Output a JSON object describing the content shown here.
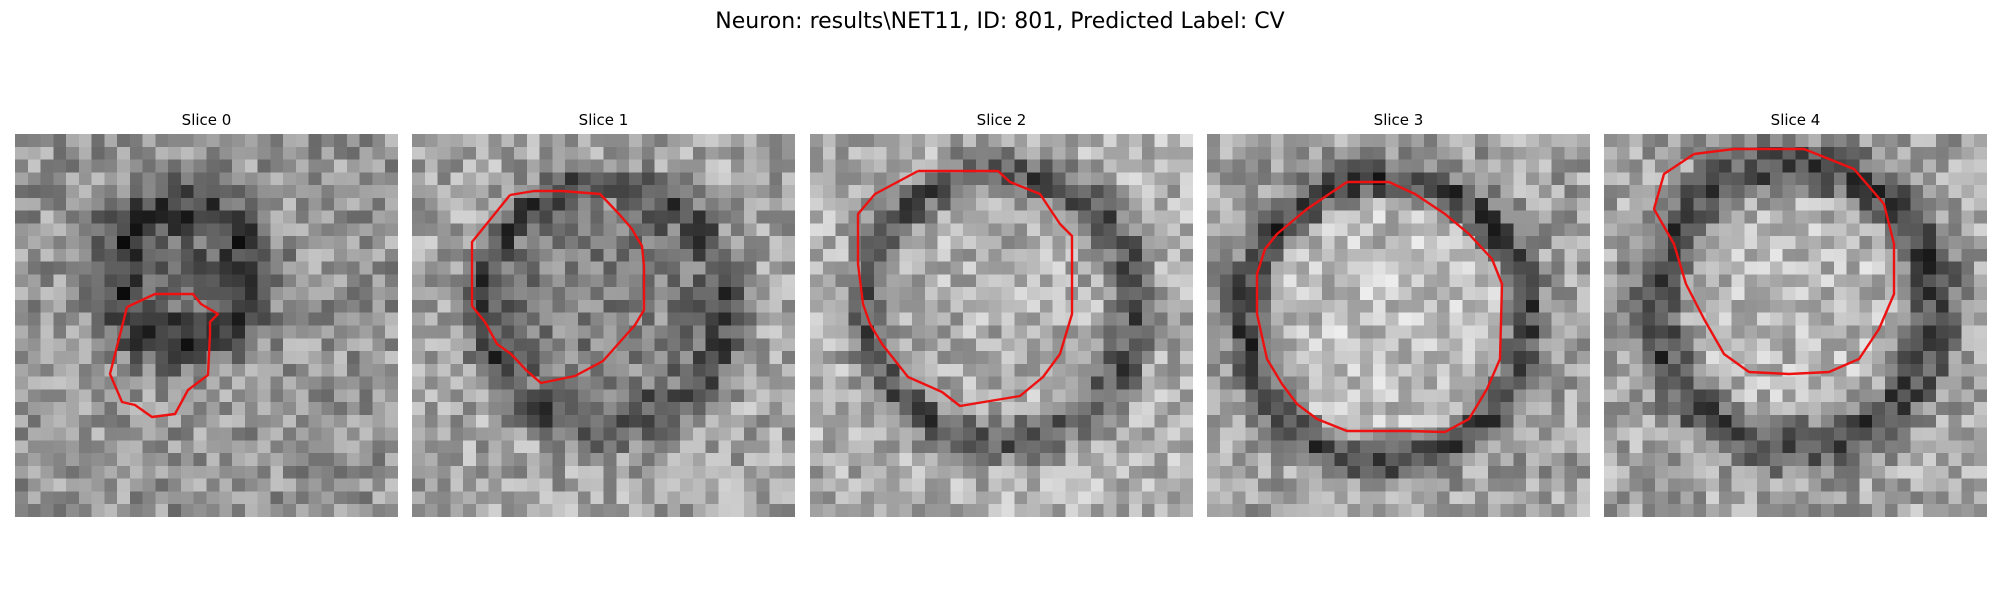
{
  "figure": {
    "title": "Neuron: results\\NET11, ID: 801, Predicted Label: CV"
  },
  "colors": {
    "contour": "#ee1111",
    "background": "#ffffff"
  },
  "panels": [
    {
      "title": "Slice 0"
    },
    {
      "title": "Slice 1"
    },
    {
      "title": "Slice 2"
    },
    {
      "title": "Slice 3"
    },
    {
      "title": "Slice 4"
    }
  ]
}
